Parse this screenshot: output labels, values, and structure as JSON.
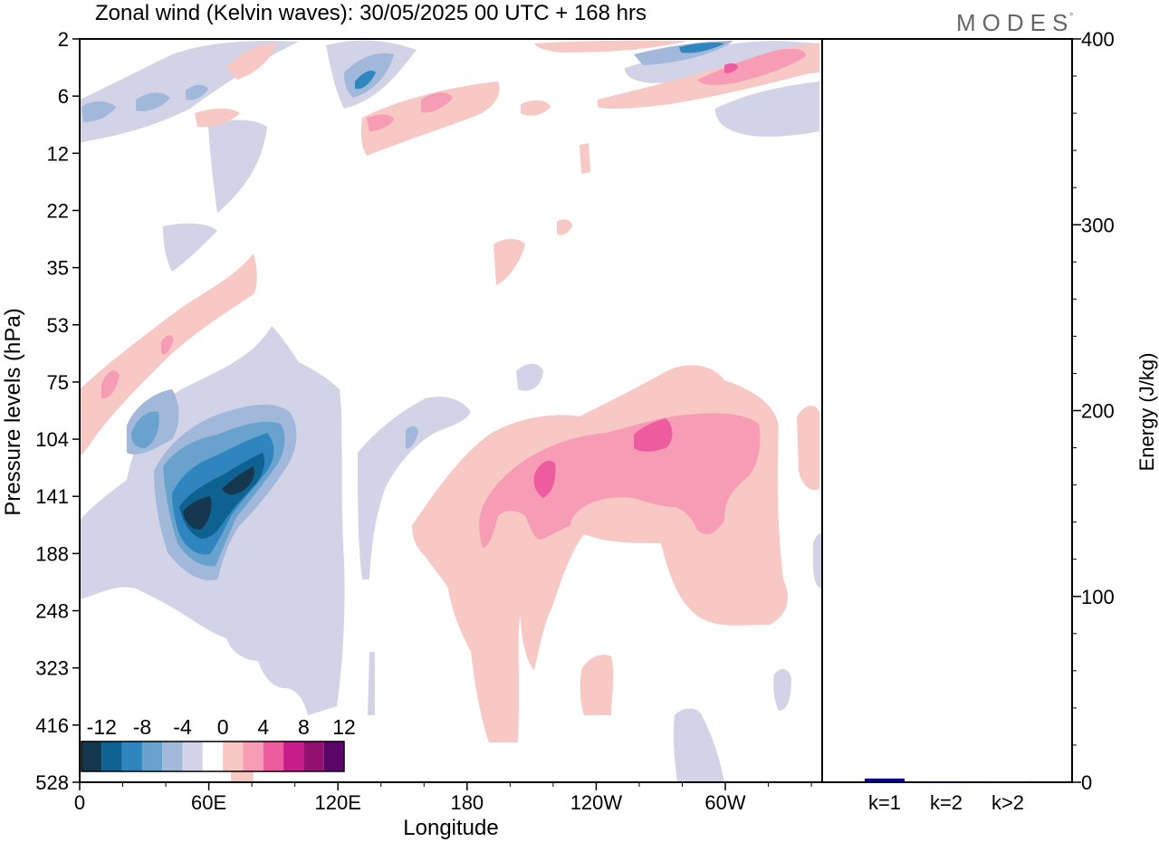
{
  "title": "Zonal wind (Kelvin waves):  30/05/2025  00 UTC  + 168 hrs",
  "brand": "MODES",
  "brand_mark": "°",
  "colorbar": {
    "labels": [
      "-12",
      "-8",
      "-4",
      "0",
      "4",
      "8",
      "12"
    ],
    "colors": [
      "#16384f",
      "#0e6291",
      "#2f86bf",
      "#68a2cd",
      "#a2b8db",
      "#d2d3e7",
      "#ffffff",
      "#f8c8c4",
      "#f79cb5",
      "#ec5c9f",
      "#c81e8c",
      "#93116f",
      "#5a0668"
    ]
  },
  "chart_data": [
    {
      "type": "heatmap",
      "title": "Zonal wind (Kelvin waves):  30/05/2025  00 UTC  + 168 hrs",
      "xlabel": "Longitude",
      "ylabel": "Pressure levels (hPa)",
      "x_tick_labels": [
        "0",
        "60E",
        "120E",
        "180",
        "120W",
        "60W"
      ],
      "x_ticks_deg": [
        0,
        60,
        120,
        180,
        240,
        300
      ],
      "xlim_deg": [
        0,
        345
      ],
      "y_tick_labels": [
        "2",
        "6",
        "12",
        "22",
        "35",
        "53",
        "75",
        "104",
        "141",
        "188",
        "248",
        "323",
        "416",
        "528"
      ],
      "levels": [
        -12,
        -8,
        -4,
        0,
        4,
        8,
        12
      ],
      "features": [
        {
          "lon": 60,
          "level": "141",
          "value": -12
        },
        {
          "lon": 75,
          "level": "104",
          "value": -8
        },
        {
          "lon": 35,
          "level": "104",
          "value": -6
        },
        {
          "lon": 20,
          "level": "75",
          "value": 4
        },
        {
          "lon": 155,
          "level": "6",
          "value": -6
        },
        {
          "lon": 310,
          "level": "6",
          "value": 8
        },
        {
          "lon": 325,
          "level": "2",
          "value": 6
        },
        {
          "lon": 240,
          "level": "141",
          "value": 7
        },
        {
          "lon": 268,
          "level": "104",
          "value": 8
        },
        {
          "lon": 290,
          "level": "104",
          "value": 8
        },
        {
          "lon": 275,
          "level": "188",
          "value": 4
        },
        {
          "lon": 190,
          "level": "248",
          "value": 4
        }
      ]
    },
    {
      "type": "bar",
      "categories": [
        "k=1",
        "k=2",
        "k>2"
      ],
      "values": [
        2,
        0.3,
        0.5
      ],
      "ylabel": "Energy (J/kg)",
      "ylim": [
        0,
        400
      ],
      "y_tick_labels": [
        "0",
        "100",
        "200",
        "300",
        "400"
      ],
      "bar_color": "#00008b"
    }
  ]
}
